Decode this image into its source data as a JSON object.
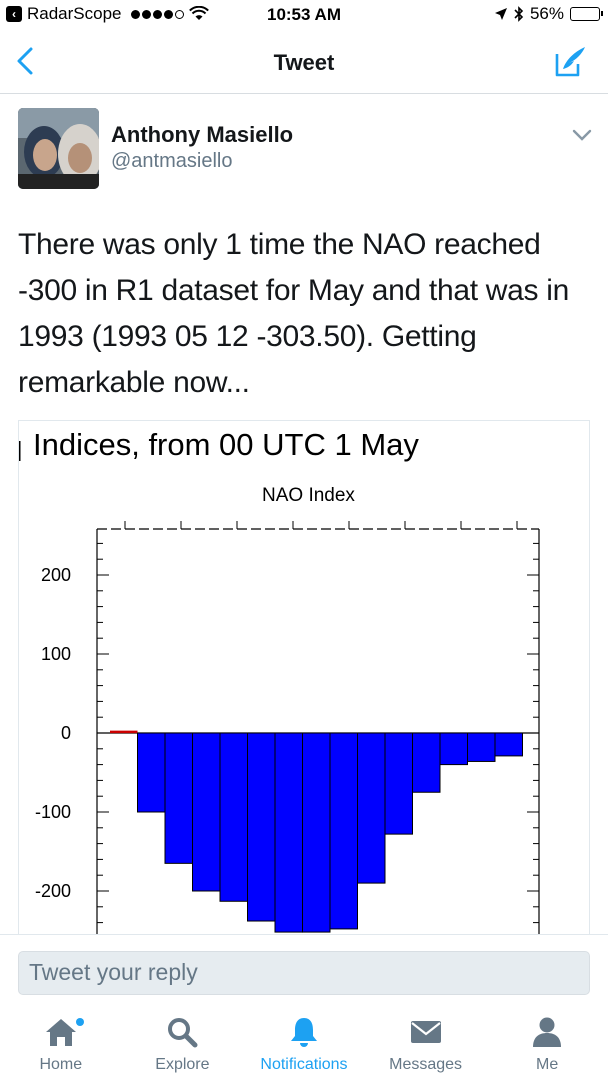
{
  "status_bar": {
    "carrier": "RadarScope",
    "time": "10:53 AM",
    "battery": "56%",
    "battery_level": 0.56
  },
  "nav": {
    "title": "Tweet",
    "back_icon": "chevron-left-icon",
    "compose_icon": "compose-tweet-icon"
  },
  "tweet": {
    "author_name": "Anthony Masiello",
    "author_handle": "@antmasiello",
    "text": "There was only 1 time the NAO reached -300 in R1 dataset for May and that was in 1993 (1993 05 12 -303.50). Getting remarkable now..."
  },
  "media": {
    "title": "Indices, from 00 UTC 1 May",
    "subtitle": "NAO Index"
  },
  "chart_data": {
    "type": "bar",
    "title": "Indices, from 00 UTC 1 May",
    "subtitle": "NAO Index",
    "x": [
      1,
      2,
      3,
      4,
      5,
      6,
      7,
      8,
      9,
      10,
      11,
      12,
      13,
      14,
      15
    ],
    "values": [
      3,
      -100,
      -165,
      -200,
      -213,
      -238,
      -252,
      -252,
      -248,
      -190,
      -128,
      -75,
      -40,
      -36,
      -29
    ],
    "y_ticks": [
      200,
      100,
      0,
      -100,
      -200
    ],
    "ylim": [
      -300,
      300
    ],
    "colors": {
      "positive": "#cc0000",
      "negative": "#0000ff"
    },
    "grid": false
  },
  "reply": {
    "placeholder": "Tweet your reply"
  },
  "tabs": [
    {
      "label": "Home",
      "icon": "home-icon",
      "active": false
    },
    {
      "label": "Explore",
      "icon": "search-icon",
      "active": false
    },
    {
      "label": "Notifications",
      "icon": "bell-icon",
      "active": true
    },
    {
      "label": "Messages",
      "icon": "envelope-icon",
      "active": false
    },
    {
      "label": "Me",
      "icon": "person-icon",
      "active": false
    }
  ],
  "colors": {
    "accent": "#1da1f2",
    "text": "#14171a",
    "secondary": "#657786"
  }
}
